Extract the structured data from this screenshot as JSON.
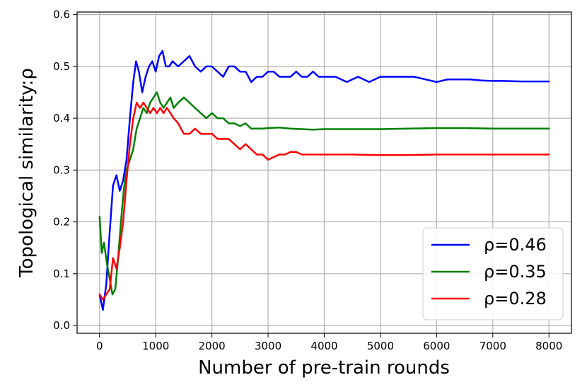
{
  "chart_data": {
    "type": "line",
    "xlabel": "Number of pre-train rounds",
    "ylabel": "Topological similarity:ρ",
    "xlim": [
      -400,
      8400
    ],
    "ylim": [
      -0.015,
      0.605
    ],
    "xticks": [
      0,
      1000,
      2000,
      3000,
      4000,
      5000,
      6000,
      7000,
      8000
    ],
    "yticks": [
      0.0,
      0.1,
      0.2,
      0.3,
      0.4,
      0.5,
      0.6
    ],
    "xtick_labels": [
      "0",
      "1000",
      "2000",
      "3000",
      "4000",
      "5000",
      "6000",
      "7000",
      "8000"
    ],
    "ytick_labels": [
      "0.0",
      "0.1",
      "0.2",
      "0.3",
      "0.4",
      "0.5",
      "0.6"
    ],
    "grid": true,
    "legend_position": "bottom-right",
    "series": [
      {
        "name": "ρ=0.46",
        "color": "#0000ff",
        "points": [
          [
            0,
            0.06
          ],
          [
            60,
            0.03
          ],
          [
            120,
            0.08
          ],
          [
            180,
            0.18
          ],
          [
            240,
            0.27
          ],
          [
            300,
            0.29
          ],
          [
            360,
            0.26
          ],
          [
            420,
            0.28
          ],
          [
            480,
            0.32
          ],
          [
            540,
            0.4
          ],
          [
            600,
            0.47
          ],
          [
            650,
            0.51
          ],
          [
            700,
            0.49
          ],
          [
            760,
            0.45
          ],
          [
            820,
            0.48
          ],
          [
            880,
            0.5
          ],
          [
            940,
            0.51
          ],
          [
            1000,
            0.49
          ],
          [
            1060,
            0.52
          ],
          [
            1120,
            0.53
          ],
          [
            1180,
            0.5
          ],
          [
            1240,
            0.5
          ],
          [
            1300,
            0.51
          ],
          [
            1400,
            0.5
          ],
          [
            1500,
            0.51
          ],
          [
            1600,
            0.52
          ],
          [
            1700,
            0.5
          ],
          [
            1800,
            0.49
          ],
          [
            1900,
            0.5
          ],
          [
            2000,
            0.5
          ],
          [
            2100,
            0.49
          ],
          [
            2200,
            0.48
          ],
          [
            2300,
            0.5
          ],
          [
            2400,
            0.5
          ],
          [
            2500,
            0.49
          ],
          [
            2600,
            0.49
          ],
          [
            2700,
            0.47
          ],
          [
            2800,
            0.48
          ],
          [
            2900,
            0.48
          ],
          [
            3000,
            0.49
          ],
          [
            3100,
            0.49
          ],
          [
            3200,
            0.48
          ],
          [
            3300,
            0.48
          ],
          [
            3400,
            0.48
          ],
          [
            3500,
            0.49
          ],
          [
            3600,
            0.48
          ],
          [
            3700,
            0.48
          ],
          [
            3800,
            0.49
          ],
          [
            3900,
            0.48
          ],
          [
            4000,
            0.48
          ],
          [
            4200,
            0.48
          ],
          [
            4400,
            0.47
          ],
          [
            4600,
            0.48
          ],
          [
            4800,
            0.47
          ],
          [
            5000,
            0.48
          ],
          [
            5200,
            0.48
          ],
          [
            5400,
            0.48
          ],
          [
            5600,
            0.48
          ],
          [
            5800,
            0.475
          ],
          [
            6000,
            0.47
          ],
          [
            6200,
            0.475
          ],
          [
            6400,
            0.475
          ],
          [
            6600,
            0.475
          ],
          [
            6800,
            0.473
          ],
          [
            7000,
            0.472
          ],
          [
            7200,
            0.472
          ],
          [
            7500,
            0.471
          ],
          [
            8000,
            0.471
          ]
        ]
      },
      {
        "name": "ρ=0.35",
        "color": "#008000",
        "points": [
          [
            0,
            0.21
          ],
          [
            40,
            0.14
          ],
          [
            80,
            0.16
          ],
          [
            130,
            0.12
          ],
          [
            180,
            0.09
          ],
          [
            230,
            0.06
          ],
          [
            280,
            0.07
          ],
          [
            330,
            0.13
          ],
          [
            380,
            0.2
          ],
          [
            430,
            0.26
          ],
          [
            480,
            0.3
          ],
          [
            540,
            0.32
          ],
          [
            600,
            0.34
          ],
          [
            660,
            0.38
          ],
          [
            720,
            0.4
          ],
          [
            780,
            0.42
          ],
          [
            840,
            0.41
          ],
          [
            900,
            0.43
          ],
          [
            960,
            0.44
          ],
          [
            1020,
            0.45
          ],
          [
            1080,
            0.43
          ],
          [
            1140,
            0.42
          ],
          [
            1200,
            0.43
          ],
          [
            1260,
            0.44
          ],
          [
            1320,
            0.42
          ],
          [
            1400,
            0.43
          ],
          [
            1500,
            0.44
          ],
          [
            1600,
            0.43
          ],
          [
            1700,
            0.42
          ],
          [
            1800,
            0.41
          ],
          [
            1900,
            0.4
          ],
          [
            2000,
            0.41
          ],
          [
            2100,
            0.4
          ],
          [
            2200,
            0.4
          ],
          [
            2300,
            0.39
          ],
          [
            2400,
            0.39
          ],
          [
            2500,
            0.385
          ],
          [
            2600,
            0.39
          ],
          [
            2700,
            0.38
          ],
          [
            2800,
            0.38
          ],
          [
            2900,
            0.38
          ],
          [
            3000,
            0.381
          ],
          [
            3200,
            0.382
          ],
          [
            3400,
            0.38
          ],
          [
            3600,
            0.379
          ],
          [
            3800,
            0.378
          ],
          [
            4000,
            0.379
          ],
          [
            4500,
            0.379
          ],
          [
            5000,
            0.379
          ],
          [
            5500,
            0.38
          ],
          [
            6000,
            0.381
          ],
          [
            6500,
            0.381
          ],
          [
            7000,
            0.38
          ],
          [
            7500,
            0.38
          ],
          [
            8000,
            0.38
          ]
        ]
      },
      {
        "name": "ρ=0.28",
        "color": "#ff0000",
        "points": [
          [
            0,
            0.06
          ],
          [
            60,
            0.05
          ],
          [
            120,
            0.06
          ],
          [
            180,
            0.07
          ],
          [
            240,
            0.13
          ],
          [
            300,
            0.11
          ],
          [
            360,
            0.15
          ],
          [
            420,
            0.2
          ],
          [
            480,
            0.28
          ],
          [
            540,
            0.35
          ],
          [
            600,
            0.4
          ],
          [
            660,
            0.43
          ],
          [
            720,
            0.42
          ],
          [
            780,
            0.43
          ],
          [
            840,
            0.42
          ],
          [
            900,
            0.41
          ],
          [
            960,
            0.42
          ],
          [
            1020,
            0.41
          ],
          [
            1080,
            0.42
          ],
          [
            1140,
            0.41
          ],
          [
            1200,
            0.42
          ],
          [
            1260,
            0.41
          ],
          [
            1320,
            0.4
          ],
          [
            1400,
            0.39
          ],
          [
            1500,
            0.37
          ],
          [
            1600,
            0.37
          ],
          [
            1700,
            0.38
          ],
          [
            1800,
            0.37
          ],
          [
            1900,
            0.37
          ],
          [
            2000,
            0.37
          ],
          [
            2100,
            0.36
          ],
          [
            2200,
            0.36
          ],
          [
            2300,
            0.36
          ],
          [
            2400,
            0.35
          ],
          [
            2500,
            0.34
          ],
          [
            2600,
            0.35
          ],
          [
            2700,
            0.34
          ],
          [
            2800,
            0.33
          ],
          [
            2900,
            0.33
          ],
          [
            3000,
            0.32
          ],
          [
            3100,
            0.325
          ],
          [
            3200,
            0.33
          ],
          [
            3300,
            0.33
          ],
          [
            3400,
            0.335
          ],
          [
            3500,
            0.335
          ],
          [
            3600,
            0.33
          ],
          [
            3800,
            0.33
          ],
          [
            4000,
            0.33
          ],
          [
            4200,
            0.33
          ],
          [
            4500,
            0.33
          ],
          [
            5000,
            0.329
          ],
          [
            5500,
            0.329
          ],
          [
            6000,
            0.33
          ],
          [
            6500,
            0.33
          ],
          [
            7000,
            0.33
          ],
          [
            7500,
            0.33
          ],
          [
            8000,
            0.33
          ]
        ]
      }
    ]
  }
}
